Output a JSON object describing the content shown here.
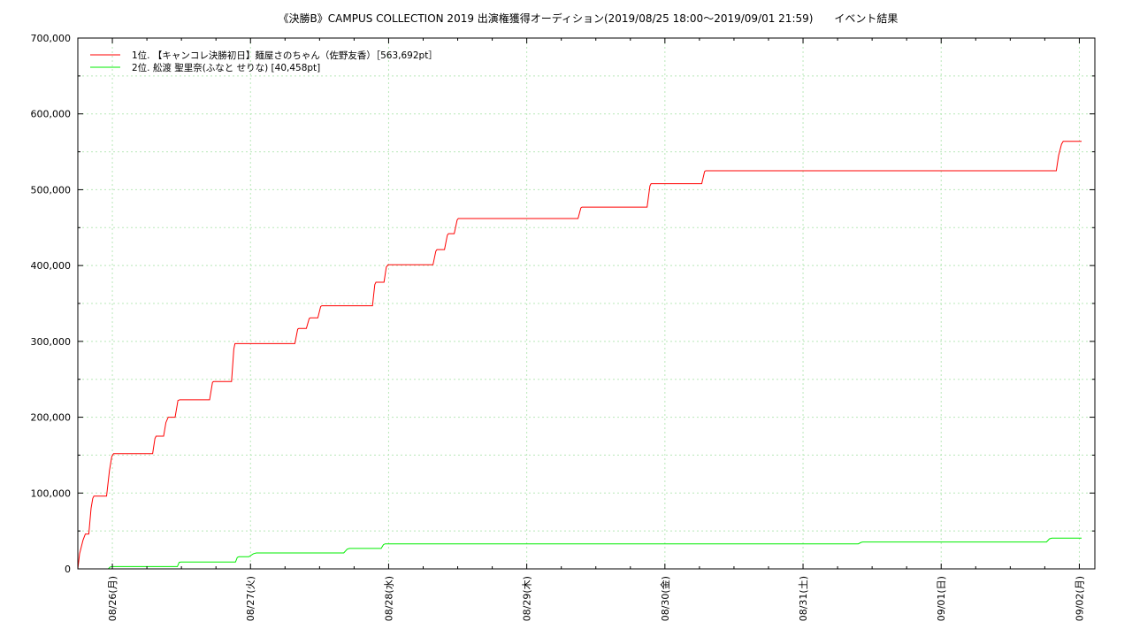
{
  "chart_data": {
    "type": "line",
    "title": "《決勝B》CAMPUS COLLECTION 2019 出演権獲得オーディション(2019/08/25 18:00〜2019/09/01 21:59)　　イベント結果",
    "xlabel": "",
    "ylabel": "",
    "ylim": [
      0,
      700000
    ],
    "yticks": [
      "0",
      "100,000",
      "200,000",
      "300,000",
      "400,000",
      "500,000",
      "600,000",
      "700,000"
    ],
    "ytick_values": [
      0,
      100000,
      200000,
      300000,
      400000,
      500000,
      600000,
      700000
    ],
    "x_start": "2019/08/25 18:00",
    "x_end": "2019/09/02 03:00",
    "xticks": [
      {
        "label": "08/26(月)",
        "hours": 6
      },
      {
        "label": "08/27(火)",
        "hours": 30
      },
      {
        "label": "08/28(水)",
        "hours": 54
      },
      {
        "label": "08/29(木)",
        "hours": 78
      },
      {
        "label": "08/30(金)",
        "hours": 102
      },
      {
        "label": "08/31(土)",
        "hours": 126
      },
      {
        "label": "09/01(日)",
        "hours": 150
      },
      {
        "label": "09/02(月)",
        "hours": 174
      }
    ],
    "grid": true,
    "legend_position": "top-left",
    "series": [
      {
        "name": "1位. 【キャンコレ決勝初日】麺屋さのちゃん（佐野友香）［563,692pt］",
        "color": "#ff0000",
        "points": [
          [
            0,
            0
          ],
          [
            0.3,
            20000
          ],
          [
            0.9,
            38000
          ],
          [
            1.3,
            46000
          ],
          [
            1.9,
            46000
          ],
          [
            2.3,
            80000
          ],
          [
            2.6,
            93000
          ],
          [
            2.8,
            96000
          ],
          [
            5.0,
            96000
          ],
          [
            5.5,
            130000
          ],
          [
            5.9,
            148000
          ],
          [
            6.2,
            152000
          ],
          [
            13.0,
            152000
          ],
          [
            13.4,
            172000
          ],
          [
            13.6,
            175000
          ],
          [
            14.9,
            175000
          ],
          [
            15.3,
            193000
          ],
          [
            15.7,
            200000
          ],
          [
            16.9,
            200000
          ],
          [
            17.4,
            222000
          ],
          [
            17.7,
            223000
          ],
          [
            22.9,
            223000
          ],
          [
            23.4,
            246000
          ],
          [
            23.6,
            247000
          ],
          [
            26.7,
            247000
          ],
          [
            27.1,
            290000
          ],
          [
            27.3,
            297000
          ],
          [
            37.7,
            297000
          ],
          [
            38.2,
            316000
          ],
          [
            38.4,
            317000
          ],
          [
            39.7,
            317000
          ],
          [
            40.2,
            330000
          ],
          [
            40.4,
            331000
          ],
          [
            41.7,
            331000
          ],
          [
            42.2,
            346000
          ],
          [
            42.4,
            347000
          ],
          [
            51.2,
            347000
          ],
          [
            51.6,
            375000
          ],
          [
            51.8,
            378000
          ],
          [
            53.2,
            378000
          ],
          [
            53.6,
            398000
          ],
          [
            53.9,
            401000
          ],
          [
            61.7,
            401000
          ],
          [
            62.2,
            419000
          ],
          [
            62.4,
            421000
          ],
          [
            63.7,
            421000
          ],
          [
            64.2,
            440000
          ],
          [
            64.4,
            442000
          ],
          [
            65.4,
            442000
          ],
          [
            65.9,
            460000
          ],
          [
            66.1,
            462000
          ],
          [
            86.9,
            462000
          ],
          [
            87.4,
            476000
          ],
          [
            87.6,
            477000
          ],
          [
            98.9,
            477000
          ],
          [
            99.4,
            505000
          ],
          [
            99.6,
            508000
          ],
          [
            108.4,
            508000
          ],
          [
            108.9,
            524000
          ],
          [
            109.1,
            525000
          ],
          [
            170.0,
            525000
          ],
          [
            170.4,
            545000
          ],
          [
            170.9,
            560000
          ],
          [
            171.2,
            563692
          ],
          [
            174.4,
            563692
          ]
        ]
      },
      {
        "name": "2位. 舩渡 聖里奈(ふなと せりな) [40,458pt]",
        "color": "#00ee00",
        "points": [
          [
            5.3,
            0
          ],
          [
            5.6,
            2500
          ],
          [
            6.0,
            3000
          ],
          [
            17.3,
            3000
          ],
          [
            17.6,
            8500
          ],
          [
            17.9,
            9000
          ],
          [
            27.4,
            9000
          ],
          [
            27.7,
            15000
          ],
          [
            28.0,
            16000
          ],
          [
            29.7,
            16000
          ],
          [
            30.5,
            20000
          ],
          [
            31.0,
            21000
          ],
          [
            46.2,
            21000
          ],
          [
            46.8,
            26000
          ],
          [
            47.2,
            27000
          ],
          [
            52.7,
            27000
          ],
          [
            53.1,
            32000
          ],
          [
            53.4,
            33000
          ],
          [
            135.6,
            33000
          ],
          [
            136.1,
            35000
          ],
          [
            136.4,
            35500
          ],
          [
            168.3,
            35500
          ],
          [
            168.8,
            39500
          ],
          [
            169.2,
            40458
          ],
          [
            174.4,
            40458
          ]
        ]
      }
    ]
  }
}
